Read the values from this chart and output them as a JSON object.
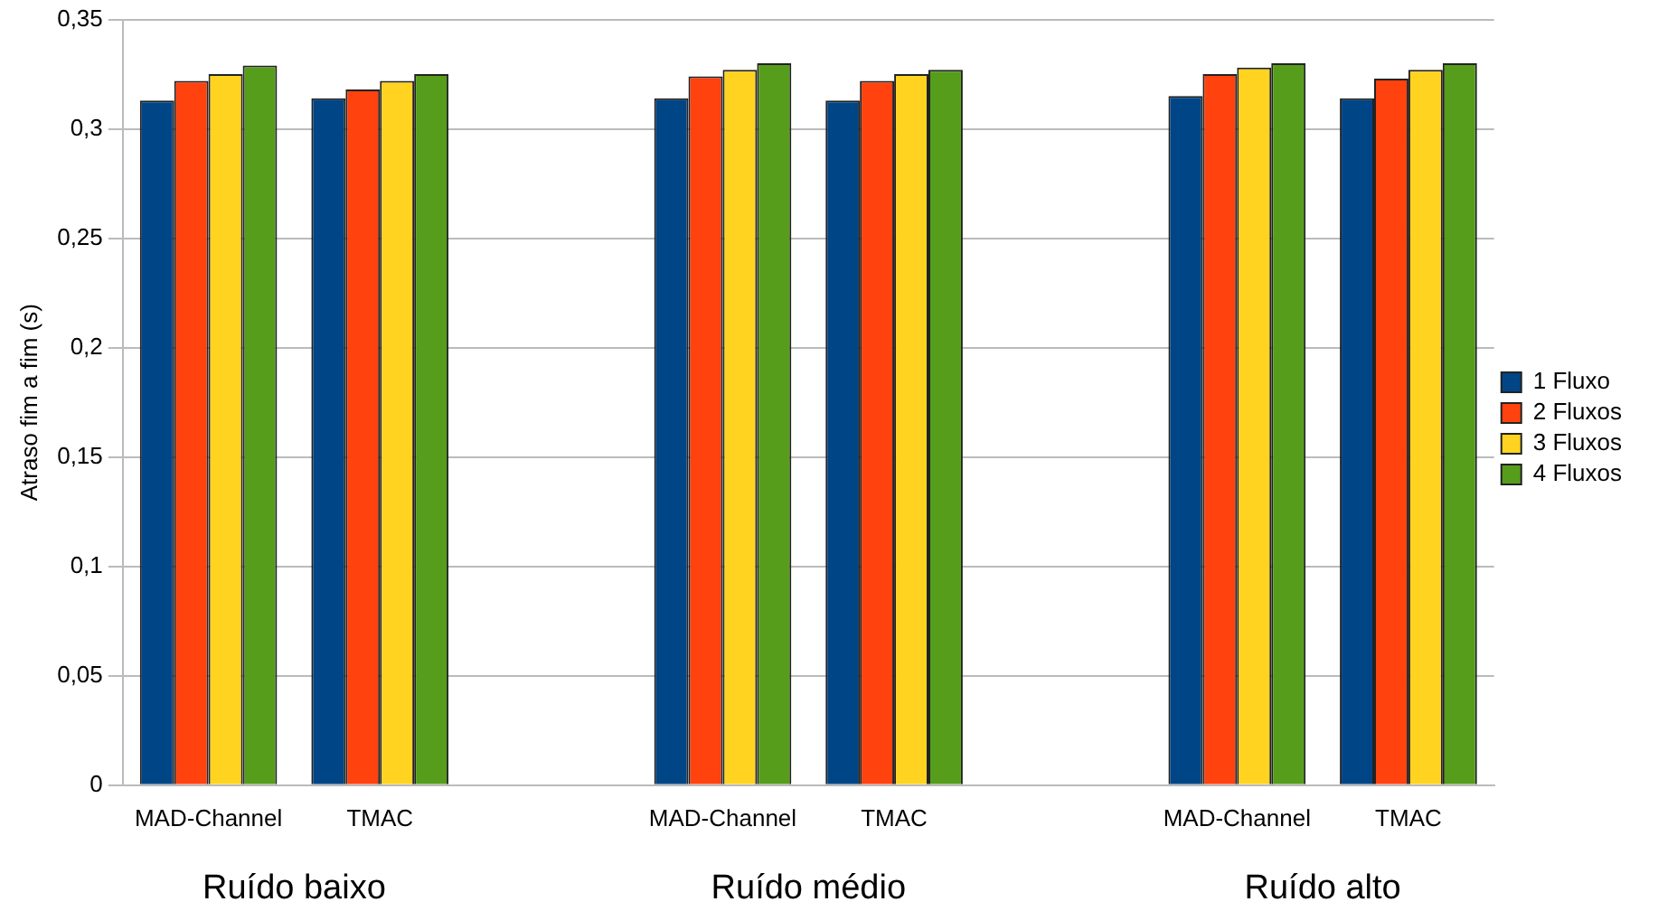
{
  "chart_data": {
    "type": "bar",
    "ylabel": "Atraso fim a fim (s)",
    "categories": [
      "MAD-Channel",
      "TMAC",
      null,
      "MAD-Channel",
      "TMAC",
      null,
      "MAD-Channel",
      "TMAC"
    ],
    "series": [
      {
        "name": "1 Fluxo",
        "color": "#004586",
        "values": [
          0.313,
          0.314,
          null,
          0.314,
          0.313,
          null,
          0.315,
          0.314
        ]
      },
      {
        "name": "2 Fluxos",
        "color": "#ff420e",
        "values": [
          0.322,
          0.318,
          null,
          0.324,
          0.322,
          null,
          0.325,
          0.323
        ]
      },
      {
        "name": "3 Fluxos",
        "color": "#ffd320",
        "values": [
          0.325,
          0.322,
          null,
          0.327,
          0.325,
          null,
          0.328,
          0.327
        ]
      },
      {
        "name": "4 Fluxos",
        "color": "#579d1c",
        "values": [
          0.329,
          0.325,
          null,
          0.33,
          0.327,
          null,
          0.33,
          0.33
        ]
      }
    ],
    "ylim": [
      0,
      0.35
    ],
    "yticks": [
      {
        "value": 0,
        "label": "0"
      },
      {
        "value": 0.05,
        "label": "0,05"
      },
      {
        "value": 0.1,
        "label": "0,1"
      },
      {
        "value": 0.15,
        "label": "0,15"
      },
      {
        "value": 0.2,
        "label": "0,2"
      },
      {
        "value": 0.25,
        "label": "0,25"
      },
      {
        "value": 0.3,
        "label": "0,3"
      },
      {
        "value": 0.35,
        "label": "0,35"
      }
    ],
    "grid": "y",
    "legend": "right",
    "annotations": [
      "Ruído baixo",
      "Ruído médio",
      "Ruído alto"
    ]
  }
}
